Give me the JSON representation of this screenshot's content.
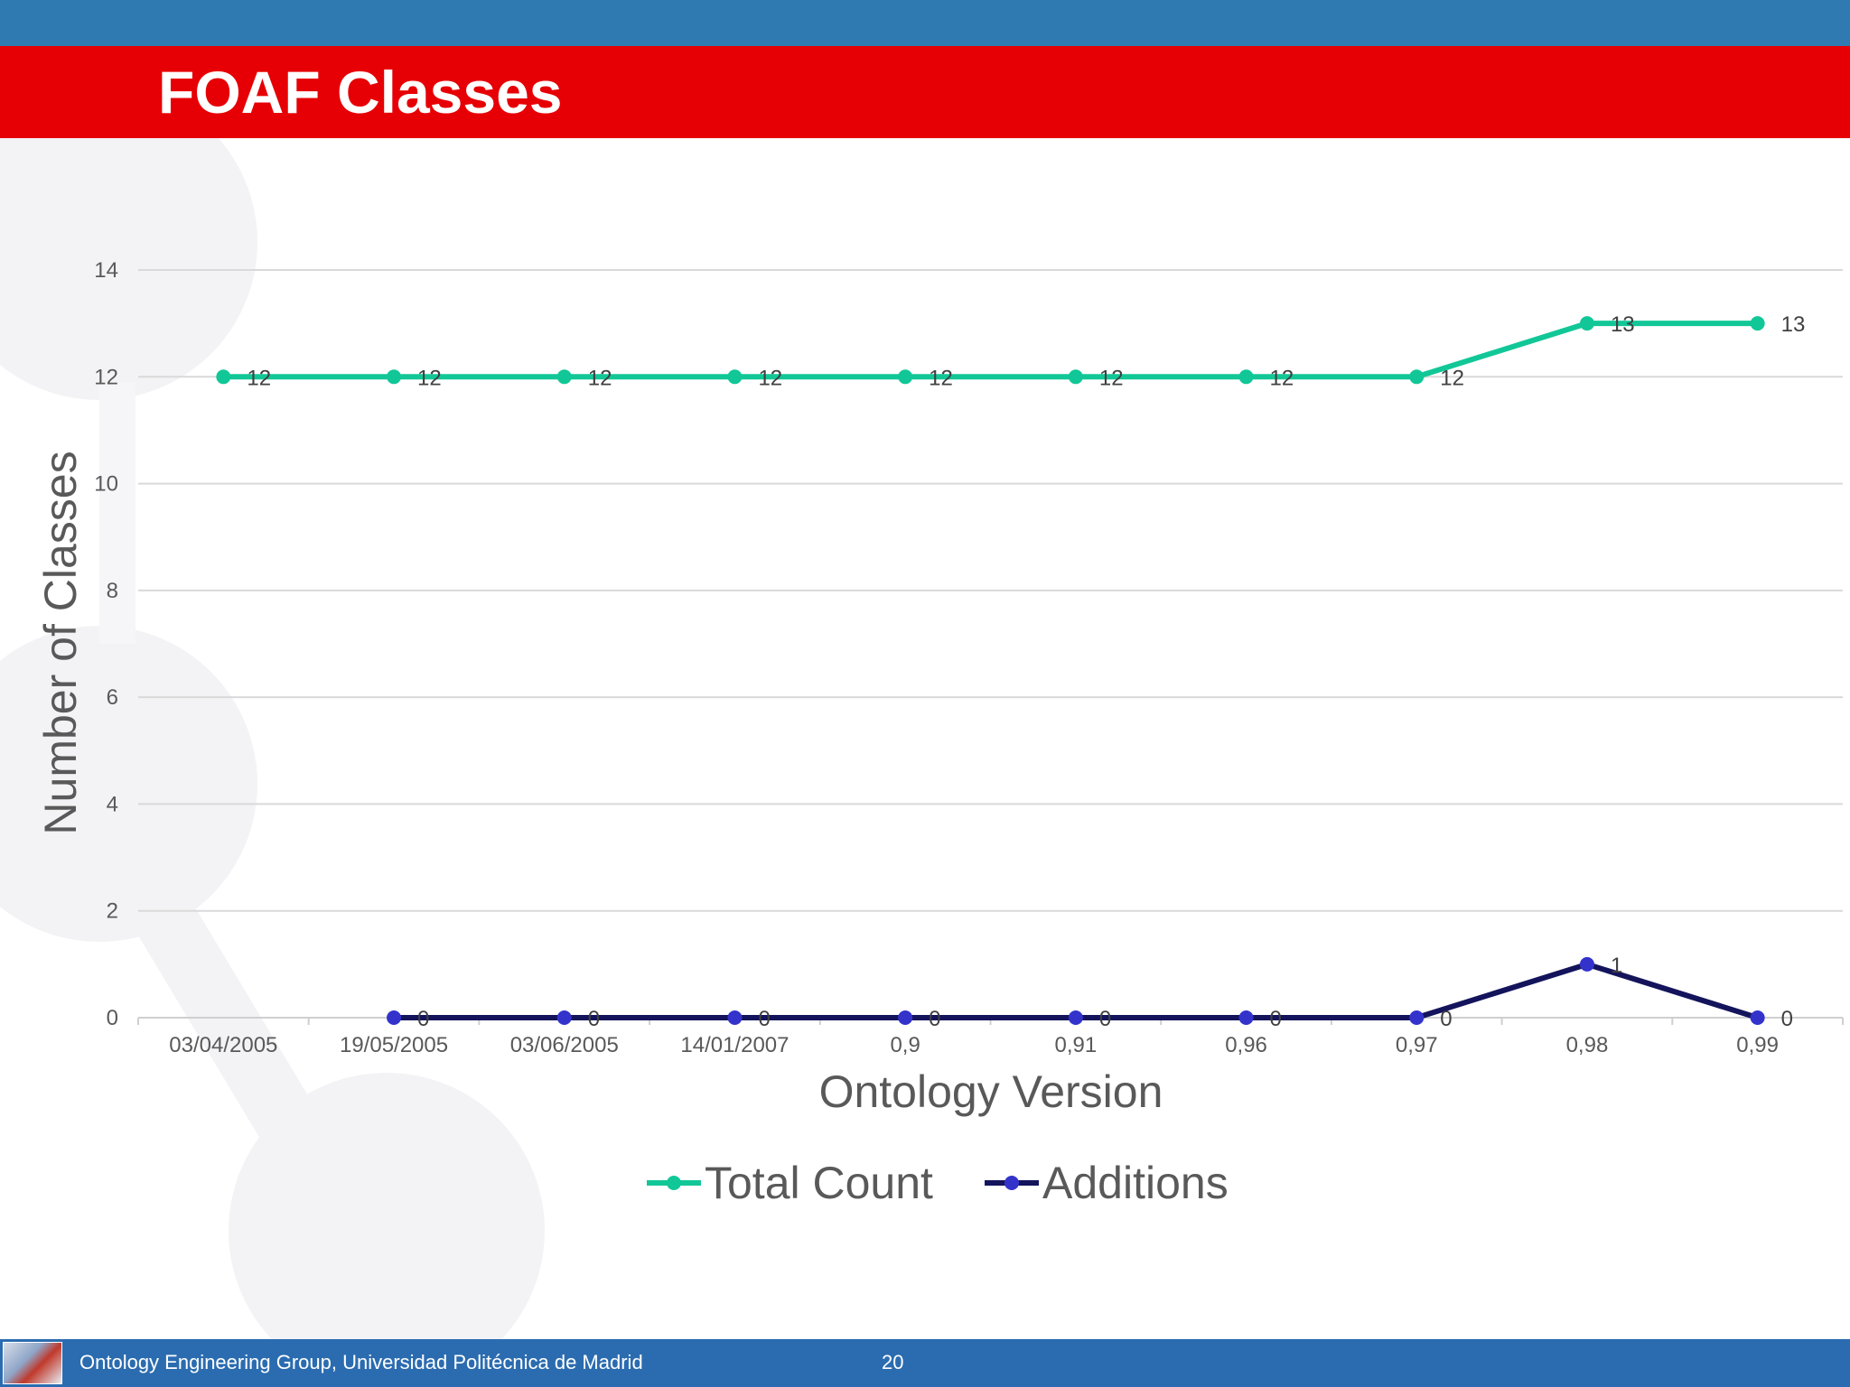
{
  "slide": {
    "title": "FOAF Classes",
    "footer_text": "Ontology Engineering Group, Universidad Politécnica de Madrid",
    "page_number": "20",
    "colors": {
      "top_bar": "#2f7ab0",
      "title_band": "#e60005",
      "footer": "#2b6cb0"
    }
  },
  "chart_data": {
    "type": "line",
    "title": "",
    "xlabel": "Ontology Version",
    "ylabel": "Number of Classes",
    "categories": [
      "03/04/2005",
      "19/05/2005",
      "03/06/2005",
      "14/01/2007",
      "0,9",
      "0,91",
      "0,96",
      "0,97",
      "0,98",
      "0,99"
    ],
    "ylim": [
      0,
      14
    ],
    "yticks": [
      "0",
      "2",
      "4",
      "6",
      "8",
      "10",
      "12",
      "14"
    ],
    "grid": true,
    "legend_position": "bottom",
    "series": [
      {
        "name": "Total Count",
        "color": "#12c797",
        "marker_color": "#12c797",
        "values": [
          12,
          12,
          12,
          12,
          12,
          12,
          12,
          12,
          13,
          13
        ],
        "labels": [
          "12",
          "12",
          "12",
          "12",
          "12",
          "12",
          "12",
          "12",
          "13",
          "13"
        ]
      },
      {
        "name": "Additions",
        "color": "#14145c",
        "marker_color": "#3333cc",
        "values": [
          null,
          0,
          0,
          0,
          0,
          0,
          0,
          0,
          1,
          0
        ],
        "labels": [
          null,
          "0",
          "0",
          "0",
          "0",
          "0",
          "0",
          "0",
          "1",
          "0"
        ]
      }
    ]
  }
}
